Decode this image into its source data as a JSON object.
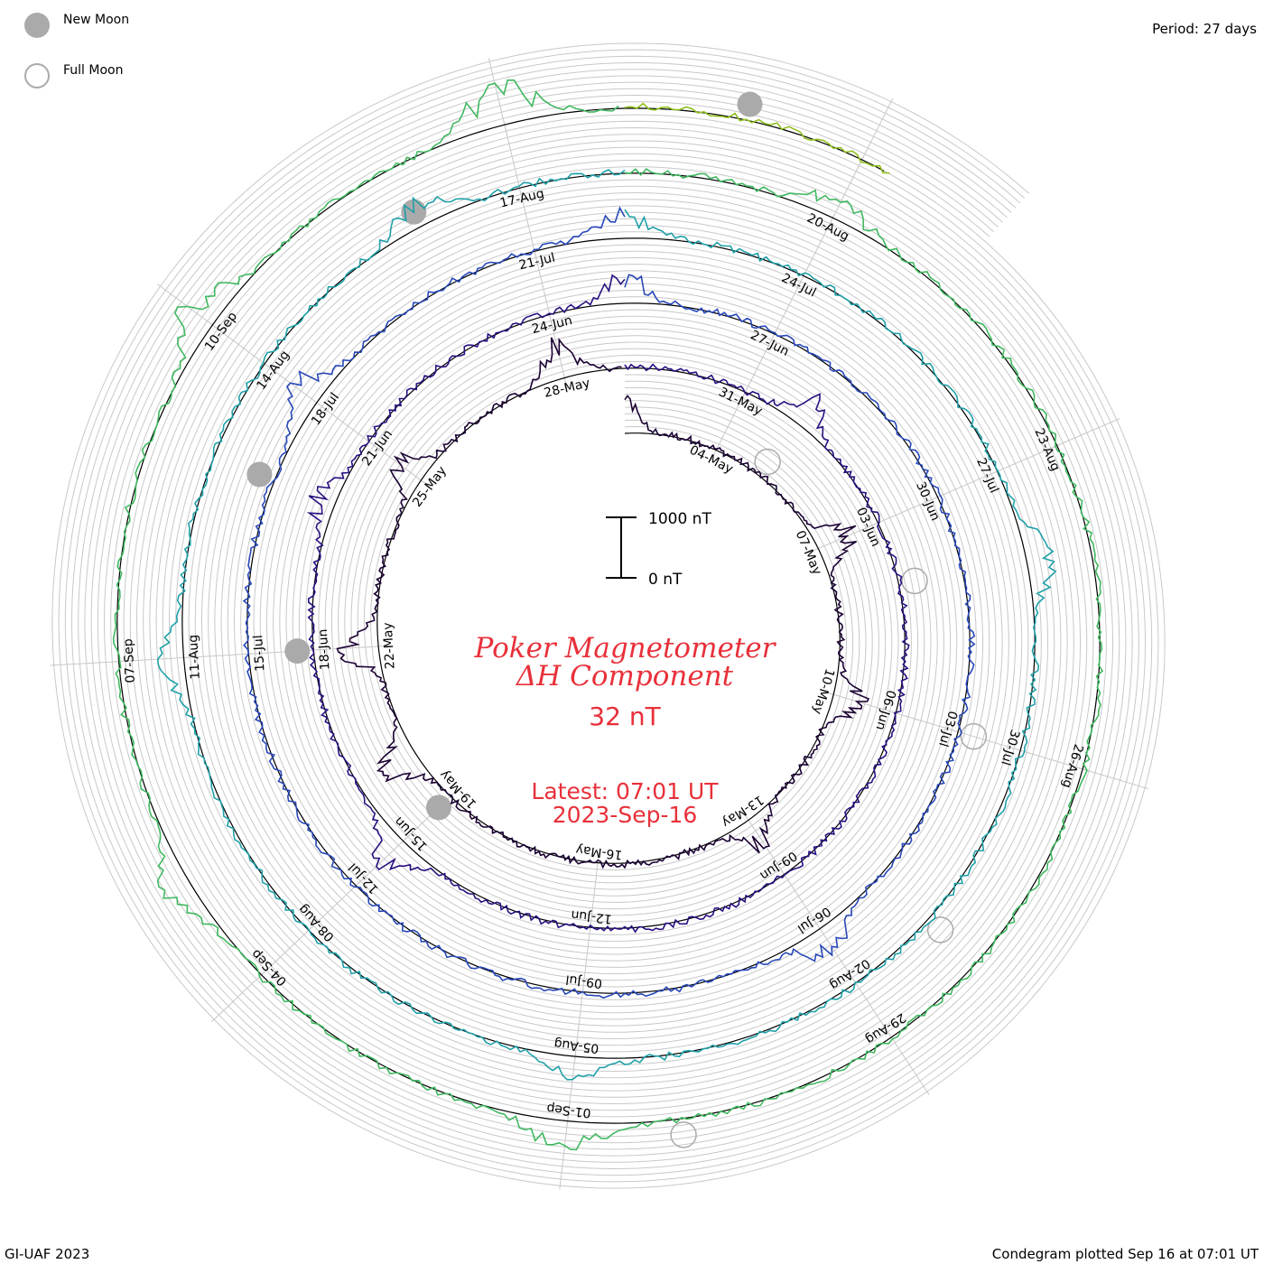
{
  "legend": {
    "new_moon": "New Moon",
    "full_moon": "Full Moon"
  },
  "header": {
    "period": "Period: 27 days"
  },
  "footer": {
    "credit": "GI-UAF 2023",
    "plotted": "Condegram plotted Sep 16 at 07:01 UT"
  },
  "center": {
    "title_line1": "Poker Magnetometer",
    "title_line2": "ΔH Component",
    "value": "32 nT",
    "latest_line1": "Latest: 07:01 UT",
    "latest_line2": "2023-Sep-16"
  },
  "scale_bar": {
    "top_label": "1000 nT",
    "bottom_label": "0 nT"
  },
  "colors": {
    "title": "#e8303a",
    "grid": "#c8c8c8",
    "baseline": "#000000",
    "moon": "#aaaaaa"
  },
  "chart_data": {
    "type": "line",
    "subtype": "polar spiral condegram",
    "period_days": 27,
    "start_date": "2023-05-02",
    "latest_time": "2023-09-16T07:01",
    "scale_nT": [
      0,
      1000
    ],
    "date_labels": [
      "04-May",
      "07-May",
      "10-May",
      "13-May",
      "16-May",
      "19-May",
      "22-May",
      "25-May",
      "28-May",
      "31-May",
      "03-Jun",
      "06-Jun",
      "09-Jun",
      "12-Jun",
      "15-Jun",
      "18-Jun",
      "21-Jun",
      "24-Jun",
      "27-Jun",
      "30-Jun",
      "03-Jul",
      "06-Jul",
      "09-Jul",
      "12-Jul",
      "15-Jul",
      "18-Jul",
      "21-Jul",
      "24-Jul",
      "27-Jul",
      "30-Jul",
      "02-Aug",
      "05-Aug",
      "08-Aug",
      "11-Aug",
      "14-Aug",
      "17-Aug",
      "20-Aug",
      "23-Aug",
      "26-Aug",
      "29-Aug",
      "01-Sep",
      "04-Sep",
      "07-Sep",
      "10-Sep"
    ],
    "new_moons": [
      "2023-05-19",
      "2023-06-18",
      "2023-07-17",
      "2023-08-16",
      "2023-09-15"
    ],
    "full_moons": [
      "2023-05-05",
      "2023-06-04",
      "2023-07-03",
      "2023-08-01",
      "2023-08-31"
    ],
    "rotation_colors": [
      "#1a0033",
      "#2a1080",
      "#2848b8",
      "#20a0a8",
      "#40b860",
      "#90c020",
      "#c0a010",
      "#c06010",
      "#c01818"
    ],
    "disturbances": [
      {
        "date": "2023-05-02",
        "magnitude_nT": 500
      },
      {
        "date": "2023-05-07",
        "magnitude_nT": 600
      },
      {
        "date": "2023-05-10",
        "magnitude_nT": 500
      },
      {
        "date": "2023-05-13",
        "magnitude_nT": 450
      },
      {
        "date": "2023-05-20",
        "magnitude_nT": 500
      },
      {
        "date": "2023-05-22",
        "magnitude_nT": 550
      },
      {
        "date": "2023-05-25",
        "magnitude_nT": 450
      },
      {
        "date": "2023-05-28",
        "magnitude_nT": 500
      },
      {
        "date": "2023-06-01",
        "magnitude_nT": 400
      },
      {
        "date": "2023-06-15",
        "magnitude_nT": 500
      },
      {
        "date": "2023-06-20",
        "magnitude_nT": 300
      },
      {
        "date": "2023-06-25",
        "magnitude_nT": 400
      },
      {
        "date": "2023-07-06",
        "magnitude_nT": 450
      },
      {
        "date": "2023-07-18",
        "magnitude_nT": 450
      },
      {
        "date": "2023-07-22",
        "magnitude_nT": 350
      },
      {
        "date": "2023-07-28",
        "magnitude_nT": 400
      },
      {
        "date": "2023-08-05",
        "magnitude_nT": 350
      },
      {
        "date": "2023-08-11",
        "magnitude_nT": 350
      },
      {
        "date": "2023-08-16",
        "magnitude_nT": 350
      },
      {
        "date": "2023-08-20",
        "magnitude_nT": 300
      },
      {
        "date": "2023-09-01",
        "magnitude_nT": 450
      },
      {
        "date": "2023-09-05",
        "magnitude_nT": 400
      },
      {
        "date": "2023-09-10",
        "magnitude_nT": 450
      },
      {
        "date": "2023-09-13",
        "magnitude_nT": 600
      }
    ]
  }
}
